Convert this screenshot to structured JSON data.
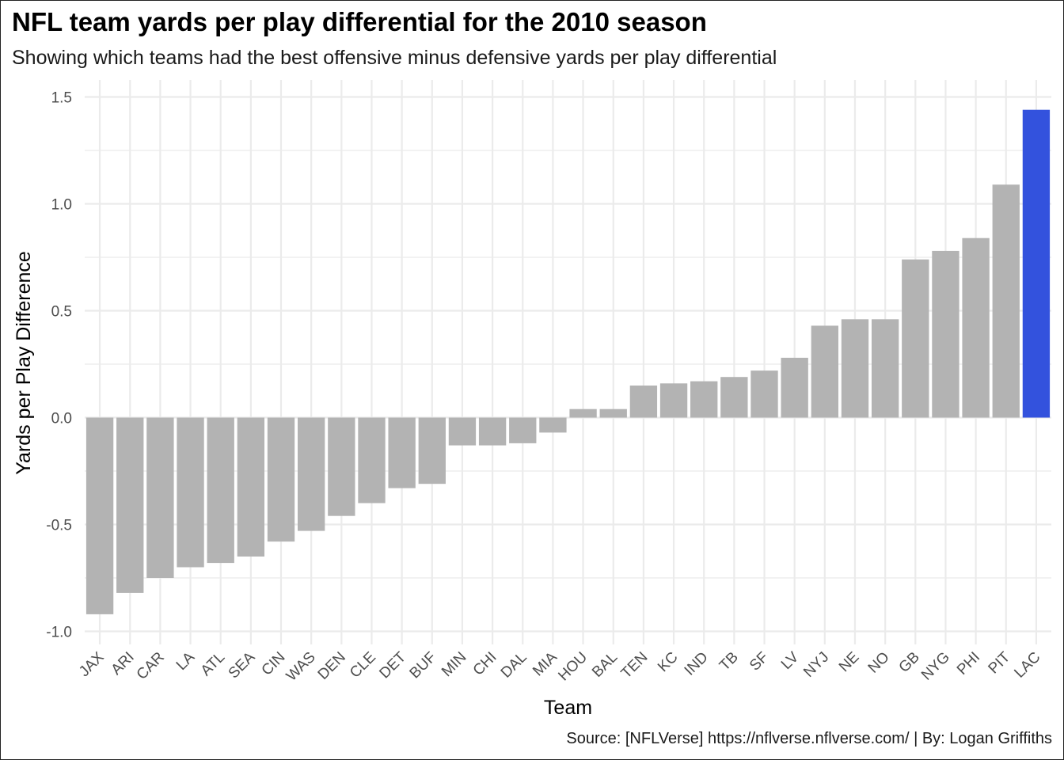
{
  "title": "NFL team yards per play differential for the 2010 season",
  "subtitle": "Showing which teams had the best offensive minus defensive yards per play differential",
  "caption": "Source: [NFLVerse] https://nflverse.nflverse.com/ | By: Logan Griffiths",
  "colors": {
    "bar_default": "#b3b3b3",
    "bar_highlight": "#3352dd",
    "grid": "#ebebeb",
    "background": "#ffffff"
  },
  "chart_data": {
    "type": "bar",
    "title": "NFL team yards per play differential for the 2010 season",
    "subtitle": "Showing which teams had the best offensive minus defensive yards per play differential",
    "xlabel": "Team",
    "ylabel": "Yards per Play Difference",
    "ylim": [
      -1.05,
      1.6
    ],
    "yticks": [
      -1.0,
      -0.5,
      0.0,
      0.5,
      1.0,
      1.5
    ],
    "ytick_labels": [
      "-1.0",
      "-0.5",
      "0.0",
      "0.5",
      "1.0",
      "1.5"
    ],
    "grid": true,
    "legend": "none",
    "highlight": "LAC",
    "categories": [
      "JAX",
      "ARI",
      "CAR",
      "LA",
      "ATL",
      "SEA",
      "CIN",
      "WAS",
      "DEN",
      "CLE",
      "DET",
      "BUF",
      "MIN",
      "CHI",
      "DAL",
      "MIA",
      "HOU",
      "BAL",
      "TEN",
      "KC",
      "IND",
      "TB",
      "SF",
      "LV",
      "NYJ",
      "NE",
      "NO",
      "GB",
      "NYG",
      "PHI",
      "PIT",
      "LAC"
    ],
    "values": [
      -0.92,
      -0.82,
      -0.75,
      -0.7,
      -0.68,
      -0.65,
      -0.58,
      -0.53,
      -0.46,
      -0.4,
      -0.33,
      -0.31,
      -0.13,
      -0.13,
      -0.12,
      -0.07,
      0.04,
      0.04,
      0.15,
      0.16,
      0.17,
      0.19,
      0.22,
      0.28,
      0.43,
      0.46,
      0.46,
      0.74,
      0.78,
      0.84,
      1.09,
      1.44
    ]
  }
}
